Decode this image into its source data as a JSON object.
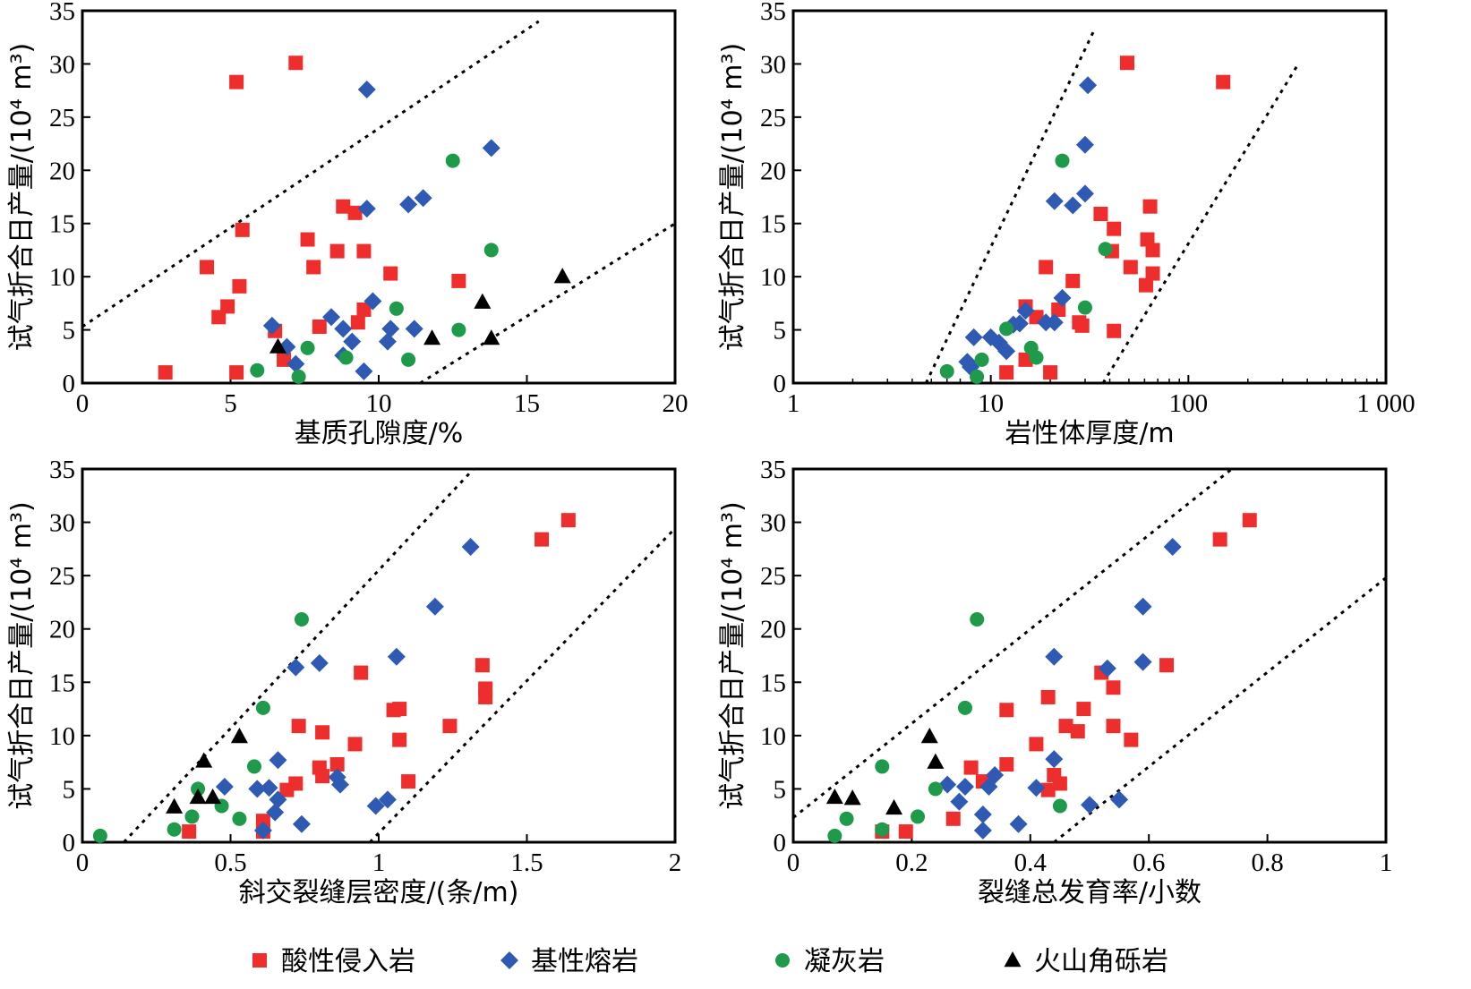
{
  "colors": {
    "acidic_intrusive": "#ee2d2d",
    "basic_lava": "#2f5ab3",
    "tuff": "#1e9a4a",
    "volcanic_breccia": "#000000"
  },
  "legend": {
    "items": [
      {
        "label": "酸性侵入岩",
        "marker": "square",
        "color": "#ee2d2d"
      },
      {
        "label": "基性熔岩",
        "marker": "diamond",
        "color": "#2f5ab3"
      },
      {
        "label": "凝灰岩",
        "marker": "circle",
        "color": "#1e9a4a"
      },
      {
        "label": "火山角砾岩",
        "marker": "triangle",
        "color": "#000000"
      }
    ]
  },
  "chart_data": [
    {
      "type": "scatter",
      "xlabel": "基质孔隙度/%",
      "ylabel": "试气折合日产量/(10⁴ m³)",
      "xscale": "linear",
      "xlim": [
        0,
        20
      ],
      "ylim": [
        0,
        35
      ],
      "xticks": [
        0,
        5,
        10,
        15,
        20
      ],
      "xtick_labels": [
        "0",
        "5",
        "10",
        "15",
        "20"
      ],
      "yticks": [
        0,
        5,
        10,
        15,
        20,
        25,
        30,
        35
      ],
      "ytick_labels": [
        "0",
        "5",
        "10",
        "15",
        "20",
        "25",
        "30",
        "35"
      ],
      "trend_lines": [
        {
          "x": [
            0,
            15.4
          ],
          "y": [
            5.3,
            34
          ]
        },
        {
          "x": [
            11.4,
            20
          ],
          "y": [
            0,
            15
          ]
        }
      ],
      "series": [
        {
          "key": "acidic_intrusive",
          "marker": "square",
          "x": [
            2.8,
            5.2,
            7.2,
            5.4,
            4.2,
            4.6,
            4.9,
            5.3,
            6.5,
            6.8,
            7.6,
            7.8,
            8.0,
            8.6,
            8.8,
            9.2,
            9.3,
            9.5,
            9.5,
            10.4,
            12.7,
            5.2
          ],
          "y": [
            1.0,
            28.3,
            30.1,
            14.4,
            10.9,
            6.2,
            7.2,
            9.1,
            4.9,
            2.2,
            13.5,
            10.9,
            5.3,
            12.4,
            16.6,
            16.0,
            5.7,
            12.4,
            6.9,
            10.3,
            9.6,
            1.0
          ]
        },
        {
          "key": "basic_lava",
          "marker": "diamond",
          "x": [
            9.6,
            13.8,
            11.5,
            11.0,
            9.6,
            6.4,
            6.9,
            7.2,
            8.4,
            8.8,
            9.1,
            8.8,
            9.8,
            10.4,
            10.3,
            11.2,
            9.5
          ],
          "y": [
            27.6,
            22.1,
            17.4,
            16.8,
            16.4,
            5.4,
            3.4,
            1.8,
            6.2,
            5.1,
            3.9,
            2.6,
            7.7,
            5.1,
            3.9,
            5.1,
            1.1
          ]
        },
        {
          "key": "tuff",
          "marker": "circle",
          "x": [
            12.5,
            13.8,
            10.6,
            12.7,
            7.6,
            8.9,
            5.9,
            11.0,
            7.3
          ],
          "y": [
            20.9,
            12.5,
            7.0,
            5.0,
            3.3,
            2.4,
            1.2,
            2.2,
            0.6
          ]
        },
        {
          "key": "volcanic_breccia",
          "marker": "triangle",
          "x": [
            16.2,
            13.5,
            11.8,
            13.8,
            6.6
          ],
          "y": [
            10.0,
            7.6,
            4.2,
            4.2,
            3.4
          ]
        }
      ]
    },
    {
      "type": "scatter",
      "xlabel": "岩性体厚度/m",
      "ylabel": "试气折合日产量/(10⁴ m³)",
      "xscale": "log",
      "xlim": [
        1,
        1000
      ],
      "ylim": [
        0,
        35
      ],
      "xticks": [
        1,
        10,
        100,
        1000
      ],
      "xtick_labels": [
        "1",
        "10",
        "100",
        "1 000"
      ],
      "yticks": [
        0,
        5,
        10,
        15,
        20,
        25,
        30,
        35
      ],
      "ytick_labels": [
        "0",
        "5",
        "10",
        "15",
        "20",
        "25",
        "30",
        "35"
      ],
      "trend_lines": [
        {
          "x": [
            4.7,
            33
          ],
          "y": [
            0,
            33
          ]
        },
        {
          "x": [
            37,
            360
          ],
          "y": [
            0,
            30
          ]
        }
      ],
      "series": [
        {
          "key": "acidic_intrusive",
          "marker": "square",
          "x": [
            49,
            150,
            64,
            36,
            42,
            62,
            66,
            41,
            51,
            66,
            61,
            26,
            19,
            28,
            22,
            15,
            17,
            29,
            42,
            15,
            12,
            20
          ],
          "y": [
            30.1,
            28.3,
            16.6,
            15.9,
            14.5,
            13.5,
            12.5,
            12.4,
            10.9,
            10.3,
            9.2,
            9.6,
            10.9,
            5.7,
            6.9,
            7.2,
            6.2,
            5.4,
            4.9,
            2.2,
            1.0,
            1.0
          ]
        },
        {
          "key": "basic_lava",
          "marker": "diamond",
          "x": [
            31,
            30,
            21,
            30,
            26,
            23,
            15,
            14,
            13,
            10,
            8.2,
            11,
            12,
            7.6,
            7.9,
            19,
            21
          ],
          "y": [
            28.0,
            22.4,
            17.1,
            17.8,
            16.7,
            8.0,
            6.8,
            5.6,
            5.5,
            4.3,
            4.3,
            3.8,
            3.0,
            2.0,
            1.5,
            5.7,
            5.7
          ]
        },
        {
          "key": "tuff",
          "marker": "circle",
          "x": [
            23,
            38,
            30,
            12,
            16,
            17,
            9,
            6,
            8.5
          ],
          "y": [
            20.9,
            12.6,
            7.1,
            5.1,
            3.3,
            2.4,
            2.2,
            1.1,
            0.6
          ]
        },
        {
          "key": "volcanic_breccia",
          "marker": "triangle",
          "x": [],
          "y": []
        }
      ]
    },
    {
      "type": "scatter",
      "xlabel": "斜交裂缝层密度/(条/m)",
      "ylabel": "试气折合日产量/(10⁴ m³)",
      "xscale": "linear",
      "xlim": [
        0,
        2
      ],
      "ylim": [
        0,
        35
      ],
      "xticks": [
        0,
        0.5,
        1,
        1.5,
        2
      ],
      "xtick_labels": [
        "0",
        "0.5",
        "1",
        "1.5",
        "2"
      ],
      "yticks": [
        0,
        5,
        10,
        15,
        20,
        25,
        30,
        35
      ],
      "ytick_labels": [
        "0",
        "5",
        "10",
        "15",
        "20",
        "25",
        "30",
        "35"
      ],
      "trend_lines": [
        {
          "x": [
            0.14,
            1.32
          ],
          "y": [
            0,
            35
          ]
        },
        {
          "x": [
            0.97,
            2.02
          ],
          "y": [
            0,
            30
          ]
        }
      ],
      "series": [
        {
          "key": "acidic_intrusive",
          "marker": "square",
          "x": [
            1.64,
            1.55,
            1.35,
            1.36,
            1.36,
            1.07,
            1.05,
            0.94,
            0.73,
            0.81,
            1.07,
            1.24,
            0.92,
            0.8,
            0.81,
            0.86,
            0.72,
            0.69,
            1.1,
            0.61,
            0.61,
            0.36
          ],
          "y": [
            30.2,
            28.4,
            16.6,
            14.4,
            13.6,
            12.5,
            12.4,
            15.9,
            10.9,
            10.3,
            9.6,
            10.9,
            9.2,
            7.0,
            6.2,
            7.3,
            5.5,
            4.9,
            5.7,
            2.0,
            1.0,
            1.0
          ]
        },
        {
          "key": "basic_lava",
          "marker": "diamond",
          "x": [
            1.31,
            1.19,
            1.06,
            0.8,
            0.72,
            0.66,
            0.86,
            0.87,
            0.63,
            0.59,
            0.48,
            0.66,
            0.65,
            1.03,
            0.99,
            0.74,
            0.61
          ],
          "y": [
            27.7,
            22.1,
            17.4,
            16.8,
            16.4,
            7.7,
            6.1,
            5.4,
            5.1,
            5.0,
            5.2,
            4.0,
            2.8,
            4.0,
            3.4,
            1.7,
            1.1
          ]
        },
        {
          "key": "tuff",
          "marker": "circle",
          "x": [
            0.74,
            0.61,
            0.58,
            0.39,
            0.47,
            0.37,
            0.53,
            0.31,
            0.06
          ],
          "y": [
            20.9,
            12.6,
            7.1,
            5.0,
            3.4,
            2.4,
            2.2,
            1.2,
            0.6
          ]
        },
        {
          "key": "volcanic_breccia",
          "marker": "triangle",
          "x": [
            0.53,
            0.41,
            0.39,
            0.44,
            0.31
          ],
          "y": [
            9.9,
            7.6,
            4.2,
            4.2,
            3.3
          ]
        }
      ]
    },
    {
      "type": "scatter",
      "xlabel": "裂缝总发育率/小数",
      "ylabel": "试气折合日产量/(10⁴ m³)",
      "xscale": "linear",
      "xlim": [
        0,
        1
      ],
      "ylim": [
        0,
        35
      ],
      "xticks": [
        0,
        0.2,
        0.4,
        0.6,
        0.8,
        1
      ],
      "xtick_labels": [
        "0",
        "0.2",
        "0.4",
        "0.6",
        "0.8",
        "1"
      ],
      "yticks": [
        0,
        5,
        10,
        15,
        20,
        25,
        30,
        35
      ],
      "ytick_labels": [
        "0",
        "5",
        "10",
        "15",
        "20",
        "25",
        "30",
        "35"
      ],
      "trend_lines": [
        {
          "x": [
            0,
            0.74
          ],
          "y": [
            2.3,
            35
          ]
        },
        {
          "x": [
            0.44,
            1
          ],
          "y": [
            0,
            24.8
          ]
        }
      ],
      "series": [
        {
          "key": "acidic_intrusive",
          "marker": "square",
          "x": [
            0.77,
            0.72,
            0.63,
            0.52,
            0.54,
            0.43,
            0.36,
            0.49,
            0.54,
            0.46,
            0.57,
            0.48,
            0.41,
            0.3,
            0.36,
            0.44,
            0.32,
            0.45,
            0.43,
            0.27,
            0.15,
            0.19
          ],
          "y": [
            30.2,
            28.4,
            16.6,
            15.9,
            14.5,
            13.6,
            12.4,
            12.5,
            10.9,
            10.9,
            9.6,
            10.4,
            9.2,
            7.0,
            7.3,
            6.3,
            5.7,
            5.5,
            4.9,
            2.2,
            1.0,
            1.0
          ]
        },
        {
          "key": "basic_lava",
          "marker": "diamond",
          "x": [
            0.64,
            0.59,
            0.44,
            0.53,
            0.59,
            0.44,
            0.34,
            0.29,
            0.26,
            0.33,
            0.41,
            0.55,
            0.5,
            0.28,
            0.32,
            0.38,
            0.32
          ],
          "y": [
            27.7,
            22.1,
            17.4,
            16.3,
            16.9,
            7.8,
            6.3,
            5.2,
            5.4,
            5.2,
            5.1,
            4.0,
            3.5,
            3.8,
            2.6,
            1.7,
            1.1
          ]
        },
        {
          "key": "tuff",
          "marker": "circle",
          "x": [
            0.31,
            0.29,
            0.15,
            0.24,
            0.45,
            0.21,
            0.09,
            0.15,
            0.07
          ],
          "y": [
            20.9,
            12.6,
            7.1,
            5.0,
            3.4,
            2.4,
            2.2,
            1.2,
            0.6
          ]
        },
        {
          "key": "volcanic_breccia",
          "marker": "triangle",
          "x": [
            0.23,
            0.24,
            0.07,
            0.1,
            0.17
          ],
          "y": [
            9.9,
            7.5,
            4.2,
            4.1,
            3.2
          ]
        }
      ]
    }
  ]
}
